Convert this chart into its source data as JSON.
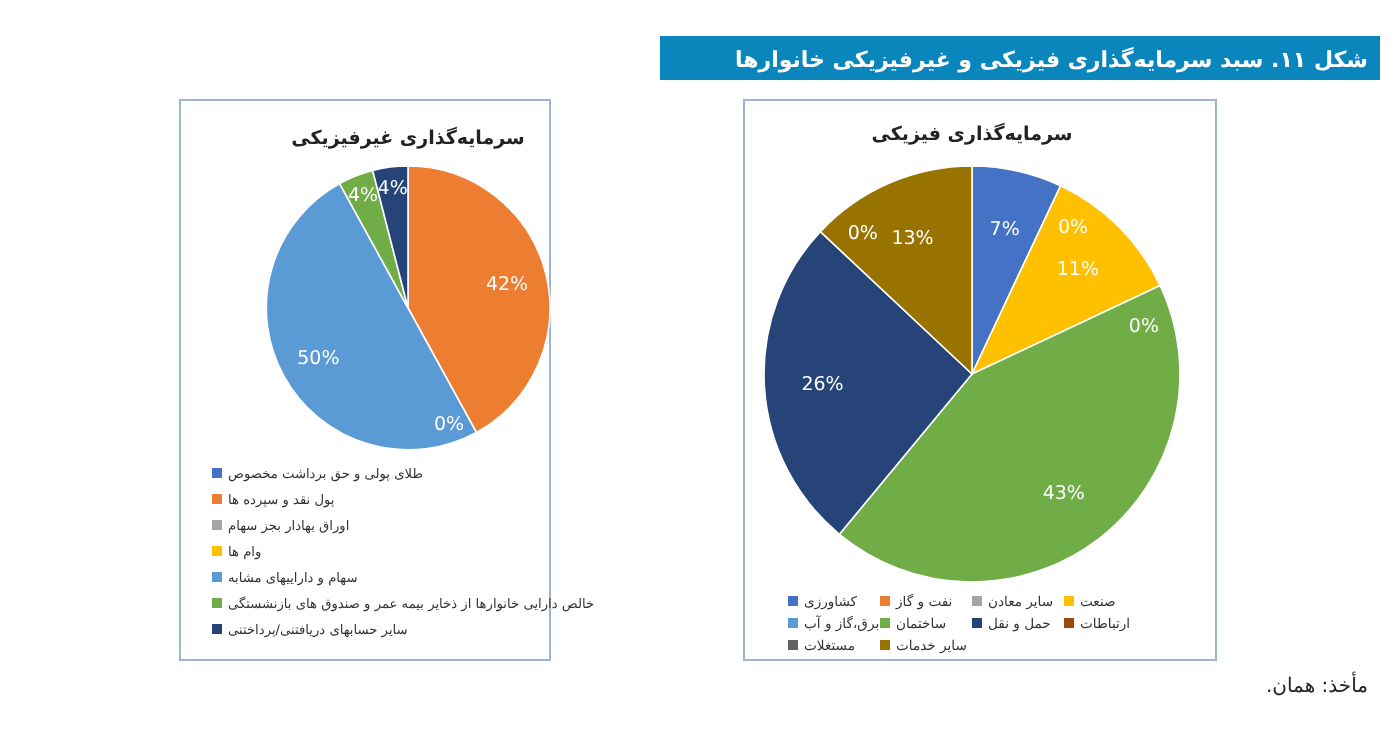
{
  "chart_data": [
    {
      "type": "other",
      "title": "شکل ۱۱. سبد سرمایه‌گذاری فیزیکی و غیرفیزیکی خانوارها",
      "annotations": [
        "مأخذ: همان."
      ]
    },
    {
      "type": "pie",
      "title": "سرمایه‌گذاری فیزیکی",
      "legend": "bottom",
      "categories": [
        "کشاورزی",
        "نفت و گاز",
        "سایر معادن",
        "صنعت",
        "برق،گاز و آب",
        "ساختمان",
        "حمل و نقل",
        "ارتباطات",
        "مستغلات",
        "سایر خدمات"
      ],
      "values": [
        7,
        0,
        0,
        11,
        0,
        43,
        26,
        0,
        0,
        13
      ],
      "value_labels": [
        "7%",
        "0%",
        null,
        "11%",
        "0%",
        "43%",
        "26%",
        "0%",
        null,
        "13%"
      ],
      "colors": [
        "#4472c4",
        "#ed7d31",
        "#a5a5a5",
        "#ffc000",
        "#5b9bd5",
        "#70ad47",
        "#264478",
        "#9e480e",
        "#636363",
        "#997300"
      ]
    },
    {
      "type": "pie",
      "title": "سرمایه‌گذاری غیرفیزیکی",
      "legend": "bottom",
      "categories": [
        "طلای پولی و حق برداشت مخصوص",
        "پول نقد و سپرده ها",
        "اوراق بهادار بجز سهام",
        "وام ها",
        "سهام و داراییهای مشابه",
        "خالص دارایی خانوارها از ذخایر بیمه عمر و صندوق های بازنشستگی",
        "سایر حسابهای دریافتنی/پرداختنی"
      ],
      "values": [
        0,
        42,
        0,
        0,
        50,
        4,
        4
      ],
      "value_labels": [
        null,
        "42%",
        "0%",
        null,
        "50%",
        "4%",
        "4%"
      ],
      "colors": [
        "#4472c4",
        "#ed7d31",
        "#a5a5a5",
        "#ffc000",
        "#5b9bd5",
        "#70ad47",
        "#264478"
      ]
    }
  ]
}
